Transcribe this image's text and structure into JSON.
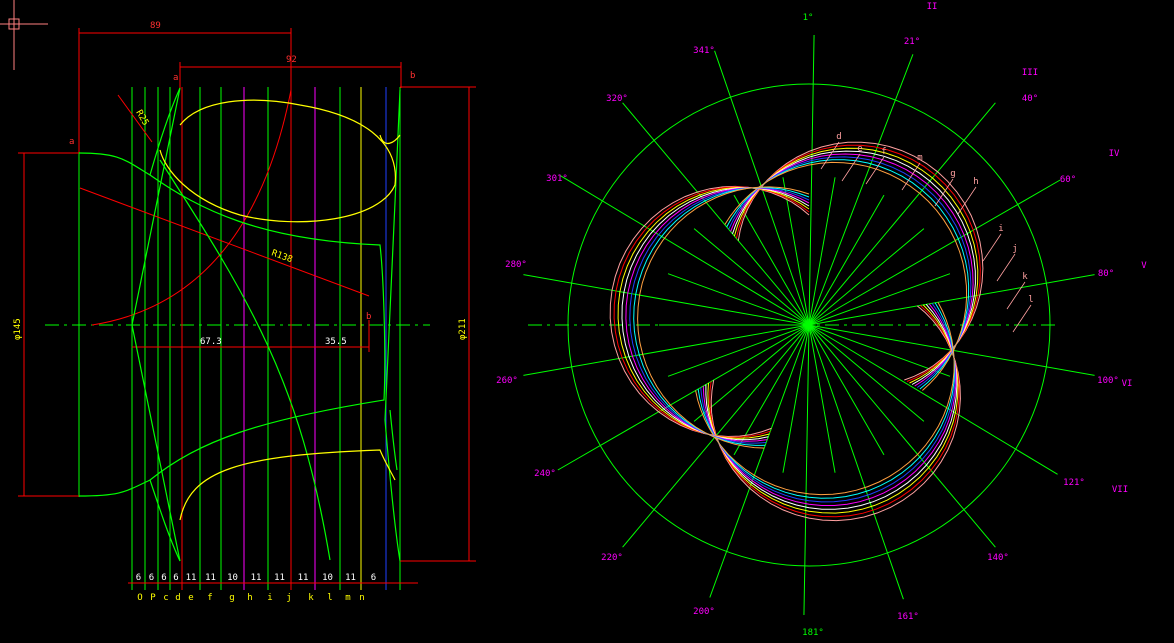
{
  "colors": {
    "background": "#000000",
    "green": "#00ff00",
    "red": "#ff0000",
    "yellow": "#ffff00",
    "magenta": "#ff00ff",
    "blue": "#2040ff",
    "white": "#ffffff",
    "cyan": "#00ffff",
    "pink": "#ffa0a0",
    "orange": "#ffa040"
  },
  "meridional_view": {
    "dims": {
      "top_89": "89",
      "top_92": "92",
      "r25": "R25",
      "r138": "R138",
      "d145": "φ145",
      "d211": "φ211",
      "h67_3": "67.3",
      "h35_5": "35.5"
    },
    "labels": {
      "a1": "a",
      "a2": "a",
      "b1": "b",
      "b2": "b"
    },
    "spacing_values": [
      "6",
      "6",
      "6",
      "6",
      "11",
      "11",
      "10",
      "11",
      "11",
      "11",
      "10",
      "11",
      "6"
    ],
    "section_letters": [
      "O",
      "P",
      "c",
      "d",
      "e",
      "f",
      "g",
      "h",
      "i",
      "j",
      "k",
      "l",
      "m",
      "n"
    ]
  },
  "plan_view": {
    "angles": [
      "1°",
      "21°",
      "40°",
      "60°",
      "80°",
      "100°",
      "121°",
      "140°",
      "161°",
      "181°",
      "200°",
      "220°",
      "240°",
      "260°",
      "280°",
      "301°",
      "320°",
      "341°"
    ],
    "roman": [
      "II",
      "III",
      "IV",
      "V",
      "VI",
      "VII"
    ],
    "curve_letters": [
      "d",
      "e",
      "f",
      "m",
      "g",
      "h",
      "i",
      "j",
      "k",
      "l"
    ]
  }
}
